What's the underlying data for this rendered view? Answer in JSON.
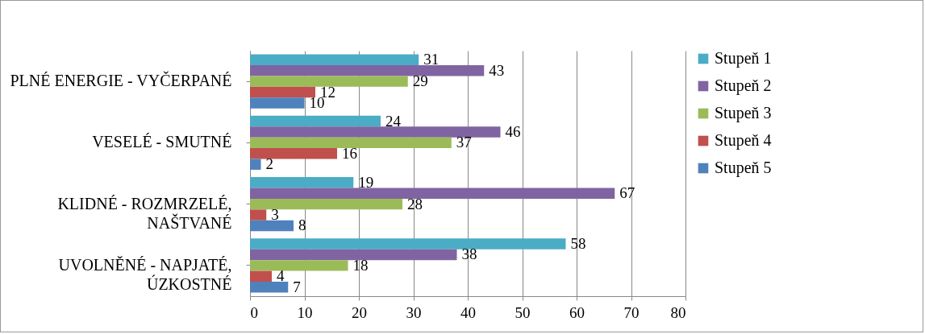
{
  "chart_data": {
    "type": "bar",
    "orientation": "horizontal",
    "categories": [
      "PLNÉ ENERGIE - VYČERPANÉ",
      "VESELÉ - SMUTNÉ",
      "KLIDNÉ - ROZMRZELÉ, NAŠTVANÉ",
      "UVOLNĚNÉ - NAPJATÉ, ÚZKOSTNÉ"
    ],
    "series": [
      {
        "name": "Stupeň 1",
        "color": "#4bacc6",
        "values": [
          31,
          24,
          19,
          58
        ]
      },
      {
        "name": "Stupeň 2",
        "color": "#8064a2",
        "values": [
          43,
          46,
          67,
          38
        ]
      },
      {
        "name": "Stupeň 3",
        "color": "#9bbb59",
        "values": [
          29,
          37,
          28,
          18
        ]
      },
      {
        "name": "Stupeň 4",
        "color": "#c0504d",
        "values": [
          12,
          16,
          3,
          4
        ]
      },
      {
        "name": "Stupeň 5",
        "color": "#4f81bd",
        "values": [
          10,
          2,
          8,
          7
        ]
      }
    ],
    "xlim": [
      0,
      80
    ],
    "xticks": [
      0,
      10,
      20,
      30,
      40,
      50,
      60,
      70,
      80
    ],
    "grid": "x",
    "legend": "right",
    "data_labels": true
  }
}
